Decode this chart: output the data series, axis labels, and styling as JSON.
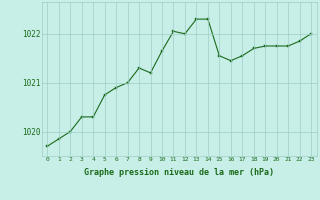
{
  "x": [
    0,
    1,
    2,
    3,
    4,
    5,
    6,
    7,
    8,
    9,
    10,
    11,
    12,
    13,
    14,
    15,
    16,
    17,
    18,
    19,
    20,
    21,
    22,
    23
  ],
  "y": [
    1019.7,
    1019.85,
    1020.0,
    1020.3,
    1020.3,
    1020.75,
    1020.9,
    1021.0,
    1021.3,
    1021.2,
    1021.65,
    1022.05,
    1022.0,
    1022.3,
    1022.3,
    1021.55,
    1021.45,
    1021.55,
    1021.7,
    1021.75,
    1021.75,
    1021.75,
    1021.85,
    1022.0
  ],
  "line_color": "#1a6b1a",
  "marker_color": "#1a6b1a",
  "bg_color": "#c8eee8",
  "grid_color": "#9ecdc5",
  "xlabel": "Graphe pression niveau de la mer (hPa)",
  "xlabel_color": "#1a6b1a",
  "tick_color": "#1a6b1a",
  "ylim": [
    1019.5,
    1022.65
  ],
  "yticks": [
    1020,
    1021,
    1022
  ],
  "xticks": [
    0,
    1,
    2,
    3,
    4,
    5,
    6,
    7,
    8,
    9,
    10,
    11,
    12,
    13,
    14,
    15,
    16,
    17,
    18,
    19,
    20,
    21,
    22,
    23
  ],
  "xticklabels": [
    "0",
    "1",
    "2",
    "3",
    "4",
    "5",
    "6",
    "7",
    "8",
    "9",
    "10",
    "11",
    "12",
    "13",
    "14",
    "15",
    "16",
    "17",
    "18",
    "19",
    "20",
    "21",
    "22",
    "23"
  ],
  "spine_color": "#9ecdc5"
}
